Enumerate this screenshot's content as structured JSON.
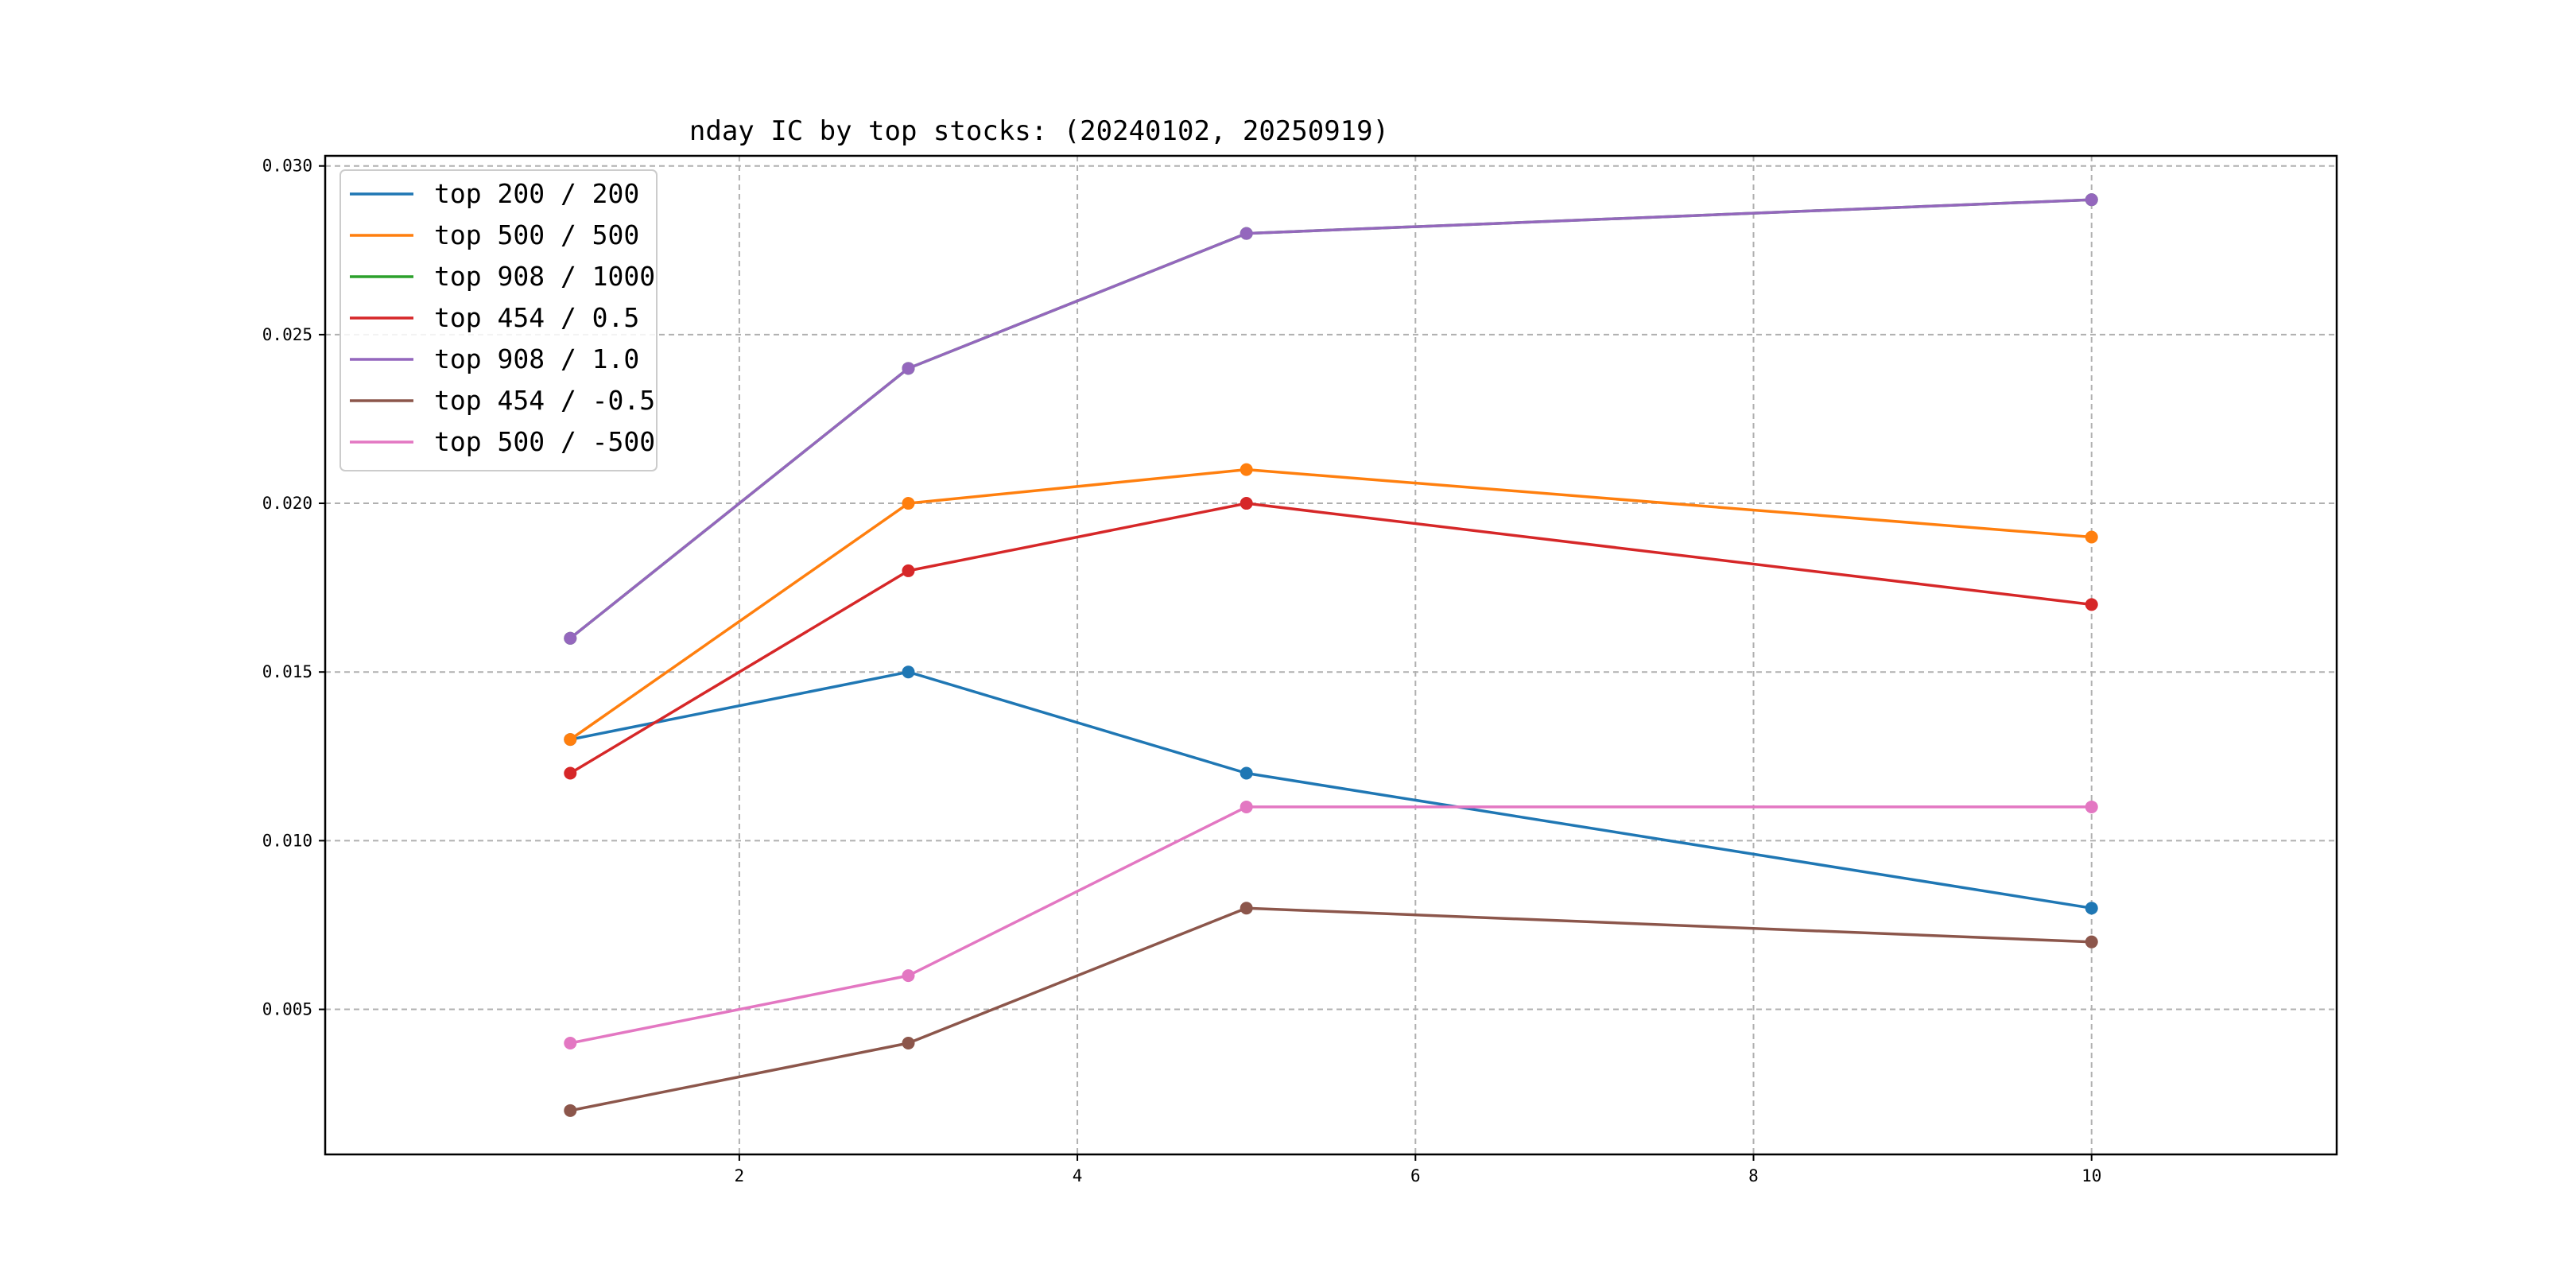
{
  "chart_data": {
    "type": "line",
    "title": "nday IC by top stocks: (20240102, 20250919)",
    "xlabel": "",
    "ylabel": "",
    "x": [
      1,
      3,
      5,
      10
    ],
    "xlim": [
      -0.45,
      11.45
    ],
    "ylim": [
      0.0007,
      0.0303
    ],
    "xticks": [
      2,
      4,
      6,
      8,
      10
    ],
    "xtick_labels": [
      "2",
      "4",
      "6",
      "8",
      "10"
    ],
    "yticks": [
      0.005,
      0.01,
      0.015,
      0.02,
      0.025,
      0.03
    ],
    "ytick_labels": [
      "0.005",
      "0.010",
      "0.015",
      "0.020",
      "0.025",
      "0.030"
    ],
    "grid": true,
    "legend_position": "top-left",
    "series": [
      {
        "name": "top 200 / 200",
        "color": "#1f77b4",
        "values": [
          0.013,
          0.015,
          0.012,
          0.008
        ]
      },
      {
        "name": "top 500 / 500",
        "color": "#ff7f0e",
        "values": [
          0.013,
          0.02,
          0.021,
          0.019
        ]
      },
      {
        "name": "top 908 / 1000",
        "color": "#2ca02c",
        "values": [
          0.016,
          0.024,
          0.028,
          0.029
        ]
      },
      {
        "name": "top 454 / 0.5",
        "color": "#d62728",
        "values": [
          0.012,
          0.018,
          0.02,
          0.017
        ]
      },
      {
        "name": "top 908 / 1.0",
        "color": "#9467bd",
        "values": [
          0.016,
          0.024,
          0.028,
          0.029
        ]
      },
      {
        "name": "top 454 / -0.5",
        "color": "#8c564b",
        "values": [
          0.002,
          0.004,
          0.008,
          0.007
        ]
      },
      {
        "name": "top 500 / -500",
        "color": "#e377c2",
        "values": [
          0.004,
          0.006,
          0.011,
          0.011
        ]
      }
    ]
  }
}
